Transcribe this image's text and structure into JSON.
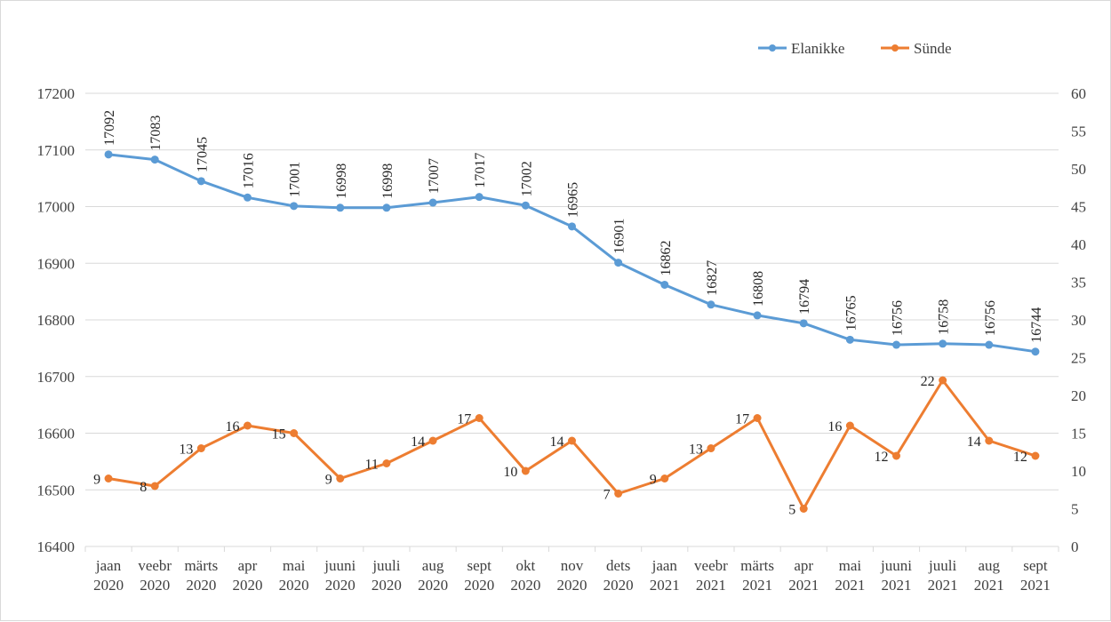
{
  "chart_data": {
    "type": "line",
    "categories": [
      [
        "jaan",
        "2020"
      ],
      [
        "veebr",
        "2020"
      ],
      [
        "märts",
        "2020"
      ],
      [
        "apr",
        "2020"
      ],
      [
        "mai",
        "2020"
      ],
      [
        "juuni",
        "2020"
      ],
      [
        "juuli",
        "2020"
      ],
      [
        "aug",
        "2020"
      ],
      [
        "sept",
        "2020"
      ],
      [
        "okt",
        "2020"
      ],
      [
        "nov",
        "2020"
      ],
      [
        "dets",
        "2020"
      ],
      [
        "jaan",
        "2021"
      ],
      [
        "veebr",
        "2021"
      ],
      [
        "märts",
        "2021"
      ],
      [
        "apr",
        "2021"
      ],
      [
        "mai",
        "2021"
      ],
      [
        "juuni",
        "2021"
      ],
      [
        "juuli",
        "2021"
      ],
      [
        "aug",
        "2021"
      ],
      [
        "sept",
        "2021"
      ]
    ],
    "series": [
      {
        "name": "Elanikke",
        "axis": "left",
        "color": "#5b9bd5",
        "values": [
          17092,
          17083,
          17045,
          17016,
          17001,
          16998,
          16998,
          17007,
          17017,
          17002,
          16965,
          16901,
          16862,
          16827,
          16808,
          16794,
          16765,
          16756,
          16758,
          16756,
          16744
        ]
      },
      {
        "name": "Sünde",
        "axis": "right",
        "color": "#ed7d31",
        "values": [
          9,
          8,
          13,
          16,
          15,
          9,
          11,
          14,
          17,
          10,
          14,
          7,
          9,
          13,
          17,
          5,
          16,
          12,
          22,
          14,
          12
        ]
      }
    ],
    "y_left": {
      "min": 16400,
      "max": 17200,
      "ticks": [
        "17200",
        "17100",
        "17000",
        "16900",
        "16800",
        "16700",
        "16600",
        "16500",
        "16400"
      ]
    },
    "y_right": {
      "min": 0,
      "max": 60,
      "ticks": [
        "60",
        "55",
        "50",
        "45",
        "40",
        "35",
        "30",
        "25",
        "20",
        "15",
        "10",
        "5",
        "0"
      ]
    },
    "grid": true,
    "legend_position": "top-right"
  }
}
